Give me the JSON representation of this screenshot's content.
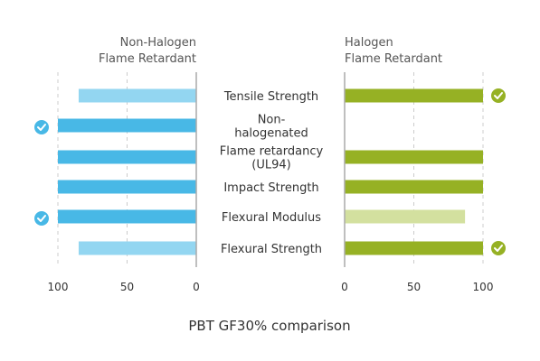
{
  "chart_data": {
    "type": "bar",
    "title": "PBT GF30% comparison",
    "panel_titles": {
      "left": [
        "Non-Halogen",
        "Flame Retardant"
      ],
      "right": [
        "Halogen",
        "Flame Retardant"
      ]
    },
    "categories": [
      [
        "Tensile Strength"
      ],
      [
        "Non-",
        "halogenated"
      ],
      [
        "Flame retardancy",
        "(UL94)"
      ],
      [
        "Impact Strength"
      ],
      [
        "Flexural Modulus"
      ],
      [
        "Flexural Strength"
      ]
    ],
    "series": [
      {
        "values": [
          85,
          100,
          100,
          100,
          100,
          85
        ],
        "emphasis": [
          "light",
          "dark",
          "dark",
          "dark",
          "dark",
          "light"
        ],
        "checkmarks": [
          false,
          true,
          false,
          false,
          true,
          false
        ]
      },
      {
        "values": [
          100,
          0,
          100,
          100,
          87,
          100
        ],
        "emphasis": [
          "dark",
          "dark",
          "dark",
          "dark",
          "light",
          "dark"
        ],
        "checkmarks": [
          true,
          false,
          false,
          false,
          false,
          true
        ]
      }
    ],
    "axis_ticks": {
      "left": [
        "100",
        "50",
        "0"
      ],
      "right": [
        "0",
        "50",
        "100"
      ]
    },
    "xlim": [
      0,
      100
    ],
    "grid": true,
    "colors": {
      "left_dark": "#48b8e6",
      "left_light": "#93d6f1",
      "right_dark": "#96b124",
      "right_light": "#d3e09f",
      "grid": "#cccccc",
      "axis": "#aaaaaa"
    }
  }
}
